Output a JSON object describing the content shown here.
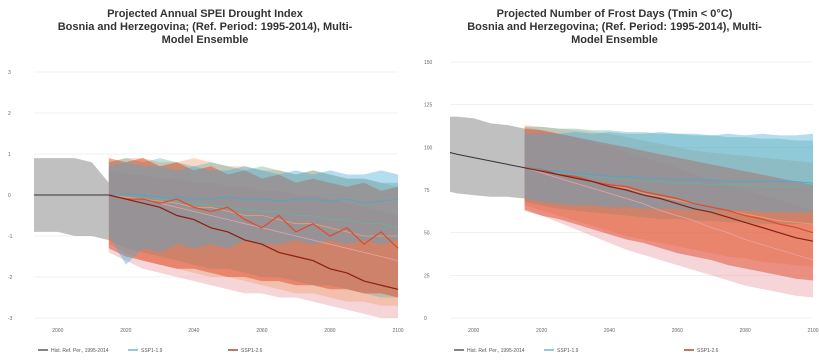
{
  "colors": {
    "historical": "#333333",
    "historical_band": "#b5b5b5",
    "ssp119": "#43a9d6",
    "ssp126": "#e04a2c",
    "ssp126_dark": "#8b1e12",
    "ssp245": "#f0a070",
    "ssp370": "#68b2a0",
    "ssp585": "#e8a2a8",
    "grid": "#e6e6e6"
  },
  "chart_data": [
    {
      "type": "line",
      "title": "Projected Annual SPEI Drought Index\nBosnia and Herzegovina; (Ref. Period: 1995-2014), Multi-\nModel Ensemble",
      "xlabel": "",
      "ylabel": "",
      "xlim": [
        1993,
        2100
      ],
      "ylim": [
        -3,
        3
      ],
      "grid": true,
      "legend": "bottom",
      "x_ticks": [
        "2000",
        "2020",
        "2040",
        "2060",
        "2080",
        "2100"
      ],
      "y_ticks": [
        "-3",
        "-2",
        "-1",
        "0",
        "1",
        "2",
        "3"
      ],
      "legend_entries": [
        "Hist. Ref. Per., 1995-2014",
        "SSP1-1.9",
        "SSP1-2.6"
      ],
      "historical": {
        "x": [
          1993,
          1995,
          2000,
          2005,
          2010,
          2015
        ],
        "mean": [
          0,
          0,
          0,
          0,
          0,
          0
        ],
        "lower": [
          -0.9,
          -0.9,
          -0.9,
          -1.0,
          -1.0,
          -1.1
        ],
        "upper": [
          0.9,
          0.9,
          0.9,
          0.9,
          0.8,
          0.3
        ]
      },
      "x": [
        2015,
        2020,
        2025,
        2030,
        2035,
        2040,
        2045,
        2050,
        2055,
        2060,
        2065,
        2070,
        2075,
        2080,
        2085,
        2090,
        2095,
        2100
      ],
      "series": [
        {
          "key": "ssp585",
          "mean": [
            0,
            -0.05,
            -0.1,
            -0.2,
            -0.3,
            -0.4,
            -0.5,
            -0.6,
            -0.7,
            -0.8,
            -0.9,
            -1.0,
            -1.1,
            -1.2,
            -1.3,
            -1.4,
            -1.5,
            -1.6
          ],
          "lower": [
            -1.4,
            -1.6,
            -1.8,
            -1.9,
            -2.0,
            -2.1,
            -2.2,
            -2.3,
            -2.4,
            -2.4,
            -2.5,
            -2.5,
            -2.6,
            -2.7,
            -2.8,
            -2.9,
            -3.0,
            -3.0
          ],
          "upper": [
            0.6,
            0.5,
            0.5,
            0.4,
            0.4,
            0.3,
            0.3,
            0.2,
            0.2,
            0.1,
            0.1,
            0.0,
            0.0,
            -0.1,
            -0.2,
            -0.3,
            -0.4,
            -0.5
          ]
        },
        {
          "key": "ssp245",
          "mean": [
            0,
            -0.05,
            -0.1,
            -0.15,
            -0.2,
            -0.3,
            -0.3,
            -0.4,
            -0.5,
            -0.5,
            -0.6,
            -0.7,
            -0.7,
            -0.8,
            -0.9,
            -1.0,
            -1.0,
            -1.0
          ],
          "lower": [
            -1.2,
            -1.4,
            -1.6,
            -1.7,
            -1.8,
            -1.9,
            -2.0,
            -2.0,
            -2.1,
            -2.2,
            -2.3,
            -2.4,
            -2.4,
            -2.5,
            -2.6,
            -2.6,
            -2.7,
            -2.7
          ],
          "upper": [
            0.8,
            0.9,
            0.9,
            0.8,
            0.8,
            0.9,
            0.8,
            0.7,
            0.7,
            0.6,
            0.6,
            0.5,
            0.6,
            0.5,
            0.4,
            0.4,
            0.3,
            0.2
          ]
        },
        {
          "key": "ssp370",
          "mean": [
            0,
            0,
            -0.05,
            -0.1,
            -0.15,
            -0.2,
            -0.25,
            -0.3,
            -0.35,
            -0.4,
            -0.4,
            -0.5,
            -0.5,
            -0.6,
            -0.6,
            -0.7,
            -0.7,
            -0.8
          ],
          "lower": [
            -1.1,
            -1.3,
            -1.4,
            -1.5,
            -1.6,
            -1.7,
            -1.8,
            -1.8,
            -1.9,
            -2.0,
            -2.0,
            -2.1,
            -2.2,
            -2.2,
            -2.3,
            -2.4,
            -2.5,
            -2.5
          ],
          "upper": [
            0.8,
            0.9,
            0.8,
            0.9,
            0.8,
            0.7,
            0.8,
            0.7,
            0.6,
            0.7,
            0.6,
            0.5,
            0.6,
            0.5,
            0.4,
            0.4,
            0.3,
            0.3
          ]
        },
        {
          "key": "ssp126",
          "mean": [
            0,
            -0.1,
            -0.1,
            -0.2,
            -0.1,
            -0.3,
            -0.4,
            -0.3,
            -0.6,
            -0.8,
            -0.5,
            -0.9,
            -0.7,
            -1.0,
            -0.8,
            -1.2,
            -0.9,
            -1.3
          ],
          "lower": [
            -1.3,
            -1.5,
            -1.6,
            -1.7,
            -1.8,
            -1.8,
            -1.9,
            -2.0,
            -2.0,
            -2.1,
            -2.1,
            -2.2,
            -2.2,
            -2.3,
            -2.3,
            -2.4,
            -2.4,
            -2.5
          ],
          "upper": [
            0.9,
            0.8,
            0.9,
            0.7,
            0.8,
            0.6,
            0.7,
            0.5,
            0.6,
            0.4,
            0.5,
            0.3,
            0.4,
            0.3,
            0.2,
            0.3,
            0.1,
            0.2
          ]
        },
        {
          "key": "ssp119",
          "mean": [
            0,
            0,
            0,
            -0.05,
            -0.05,
            -0.1,
            -0.1,
            -0.05,
            -0.1,
            -0.1,
            -0.15,
            -0.1,
            -0.1,
            -0.15,
            -0.1,
            -0.2,
            -0.15,
            -0.1
          ],
          "lower": [
            -1.0,
            -1.7,
            -1.3,
            -1.4,
            -1.2,
            -1.3,
            -1.2,
            -1.3,
            -1.1,
            -1.2,
            -1.2,
            -1.1,
            -1.2,
            -1.1,
            -1.2,
            -1.1,
            -1.2,
            -1.1
          ],
          "upper": [
            0.7,
            0.8,
            0.7,
            0.7,
            0.6,
            0.7,
            0.6,
            0.6,
            0.7,
            0.6,
            0.5,
            0.6,
            0.5,
            0.6,
            0.5,
            0.5,
            0.6,
            0.5
          ]
        }
      ],
      "dark_line": [
        0,
        -0.1,
        -0.2,
        -0.3,
        -0.5,
        -0.6,
        -0.8,
        -0.9,
        -1.1,
        -1.2,
        -1.4,
        -1.5,
        -1.6,
        -1.8,
        -1.9,
        -2.1,
        -2.2,
        -2.3
      ]
    },
    {
      "type": "line",
      "title": "Projected Number of Frost Days (Tmin < 0°C)\nBosnia and Herzegovina; (Ref. Period: 1995-2014), Multi-\nModel Ensemble",
      "xlabel": "",
      "ylabel": "",
      "xlim": [
        1993,
        2100
      ],
      "ylim": [
        0,
        150
      ],
      "grid": true,
      "legend": "bottom",
      "x_ticks": [
        "2000",
        "2020",
        "2040",
        "2060",
        "2080",
        "2100"
      ],
      "y_ticks": [
        "0",
        "25",
        "50",
        "75",
        "100",
        "125",
        "150"
      ],
      "legend_entries": [
        "Hist. Ref. Per., 1995-2014",
        "SSP1-1.9",
        "SSP1-2.6"
      ],
      "historical": {
        "x": [
          1993,
          1995,
          2000,
          2005,
          2010,
          2015
        ],
        "mean": [
          97,
          96,
          94,
          92,
          90,
          88
        ],
        "lower": [
          74,
          73,
          72,
          71,
          71,
          70
        ],
        "upper": [
          118,
          118,
          117,
          114,
          113,
          111
        ]
      },
      "x": [
        2015,
        2020,
        2025,
        2030,
        2035,
        2040,
        2045,
        2050,
        2055,
        2060,
        2065,
        2070,
        2075,
        2080,
        2085,
        2090,
        2095,
        2100
      ],
      "series": [
        {
          "key": "ssp585",
          "mean": [
            88,
            85,
            82,
            79,
            76,
            73,
            70,
            67,
            63,
            60,
            57,
            53,
            50,
            46,
            43,
            40,
            37,
            34
          ],
          "lower": [
            64,
            60,
            56,
            52,
            48,
            44,
            40,
            37,
            34,
            31,
            28,
            25,
            22,
            19,
            17,
            15,
            13,
            12
          ],
          "upper": [
            112,
            110,
            108,
            106,
            103,
            100,
            97,
            94,
            91,
            88,
            84,
            81,
            78,
            75,
            72,
            69,
            66,
            63
          ]
        },
        {
          "key": "ssp245",
          "mean": [
            88,
            86,
            84,
            82,
            80,
            78,
            76,
            73,
            71,
            69,
            67,
            65,
            63,
            61,
            59,
            57,
            56,
            55
          ],
          "lower": [
            66,
            63,
            60,
            57,
            54,
            51,
            48,
            46,
            44,
            42,
            40,
            38,
            36,
            35,
            33,
            32,
            31,
            30
          ],
          "upper": [
            113,
            112,
            111,
            110,
            109,
            108,
            106,
            104,
            102,
            100,
            98,
            97,
            96,
            95,
            94,
            93,
            92,
            91
          ]
        },
        {
          "key": "ssp370",
          "mean": [
            88,
            86,
            85,
            84,
            83,
            82,
            81,
            80,
            80,
            79,
            79,
            78,
            78,
            78,
            77,
            77,
            77,
            78
          ],
          "lower": [
            68,
            66,
            64,
            63,
            62,
            61,
            60,
            59,
            58,
            58,
            57,
            57,
            56,
            56,
            55,
            55,
            55,
            55
          ],
          "upper": [
            112,
            112,
            111,
            111,
            110,
            110,
            109,
            109,
            108,
            108,
            107,
            107,
            106,
            106,
            105,
            105,
            104,
            104
          ]
        },
        {
          "key": "ssp126",
          "mean": [
            88,
            87,
            84,
            83,
            80,
            78,
            77,
            74,
            72,
            70,
            67,
            65,
            63,
            60,
            58,
            55,
            53,
            50
          ],
          "lower": [
            63,
            60,
            58,
            55,
            52,
            49,
            46,
            44,
            41,
            38,
            36,
            34,
            31,
            29,
            27,
            25,
            23,
            22
          ],
          "upper": [
            111,
            110,
            108,
            106,
            104,
            102,
            100,
            98,
            96,
            94,
            92,
            90,
            88,
            86,
            84,
            82,
            80,
            78
          ]
        },
        {
          "key": "ssp119",
          "mean": [
            88,
            87,
            86,
            85,
            84,
            83,
            83,
            82,
            82,
            81,
            81,
            81,
            80,
            80,
            80,
            80,
            80,
            79
          ],
          "lower": [
            70,
            68,
            67,
            66,
            66,
            65,
            65,
            64,
            64,
            64,
            63,
            63,
            63,
            63,
            62,
            62,
            62,
            62
          ],
          "upper": [
            108,
            108,
            108,
            109,
            108,
            109,
            108,
            108,
            109,
            108,
            108,
            107,
            108,
            107,
            108,
            107,
            107,
            108
          ]
        }
      ],
      "dark_line": [
        88,
        86,
        84,
        82,
        80,
        77,
        75,
        72,
        70,
        67,
        64,
        62,
        59,
        56,
        53,
        50,
        47,
        45
      ]
    }
  ]
}
